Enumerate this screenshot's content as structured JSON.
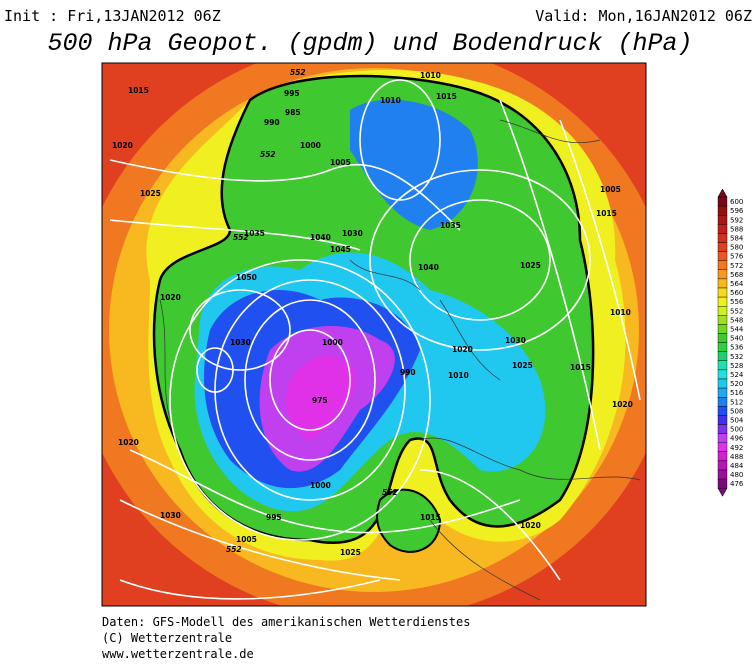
{
  "header": {
    "init": "Init : Fri,13JAN2012 06Z",
    "valid": "Valid: Mon,16JAN2012 06Z",
    "title": "500 hPa Geopot. (gpdm) und Bodendruck (hPa)"
  },
  "legend": {
    "levels": [
      600,
      596,
      592,
      588,
      584,
      580,
      576,
      572,
      568,
      564,
      560,
      556,
      552,
      548,
      544,
      540,
      536,
      532,
      528,
      524,
      520,
      516,
      512,
      508,
      504,
      500,
      496,
      492,
      488,
      484,
      480,
      476
    ],
    "colors": [
      "#780818",
      "#901010",
      "#a81818",
      "#c02020",
      "#d03020",
      "#e04020",
      "#e85820",
      "#f07820",
      "#f89820",
      "#f8b820",
      "#f8d820",
      "#f0f020",
      "#d0f020",
      "#a0e020",
      "#70d820",
      "#40c830",
      "#30d040",
      "#20d070",
      "#20e0b0",
      "#20e0e0",
      "#20c8f0",
      "#20a8f0",
      "#2080f0",
      "#2050f0",
      "#4030f0",
      "#8030f0",
      "#c040f0",
      "#e030e8",
      "#d020d0",
      "#b818b8",
      "#9a109a",
      "#7a0a7a"
    ]
  },
  "isobar_labels": [
    "1015",
    "1010",
    "1020",
    "995",
    "985",
    "990",
    "1000",
    "1005",
    "1025",
    "1010",
    "1015",
    "1035",
    "1040",
    "1030",
    "1020",
    "1025",
    "1050",
    "1045",
    "1040",
    "1035",
    "1030",
    "1000",
    "975",
    "990",
    "1010",
    "1020",
    "1030",
    "1025",
    "1015",
    "1010",
    "1020",
    "1000",
    "995",
    "1005",
    "1015",
    "1025",
    "1020",
    "1030",
    "1020",
    "1005",
    "1015"
  ],
  "contour_labels": [
    "552",
    "552",
    "552",
    "552",
    "552"
  ],
  "footer": {
    "line1": "Daten: GFS-Modell des amerikanischen Wetterdienstes",
    "line2": "(C) Wetterzentrale",
    "line3": "www.wetterzentrale.de"
  }
}
